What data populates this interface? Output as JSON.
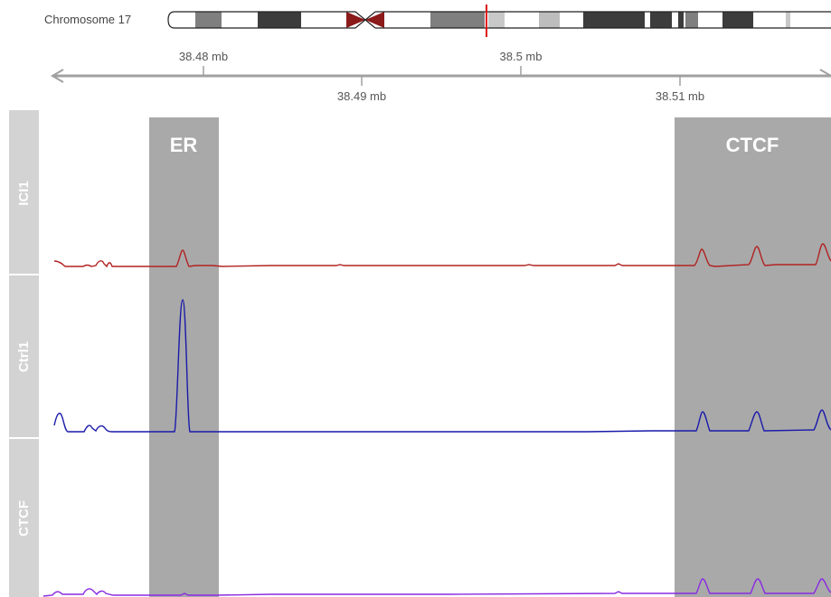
{
  "ideogram": {
    "label": "Chromosome 17"
  },
  "axis": {
    "tick_labels": [
      "38.48 mb",
      "38.49 mb",
      "38.5 mb",
      "38.51 mb"
    ]
  },
  "regions": [
    {
      "label": "ER"
    },
    {
      "label": "CTCF"
    }
  ],
  "tracks": [
    {
      "label": "ICI1",
      "color": "#b22222"
    },
    {
      "label": "Ctrl1",
      "color": "#1a1aaa"
    },
    {
      "label": "CTCF",
      "color": "#8a2be2"
    }
  ],
  "colors": {
    "track_header": "#d3d3d3",
    "region_shade": "#a9a9a9",
    "axis": "#a0a0a0",
    "centromere": "#8b1a1a",
    "position_marker": "#e01010"
  }
}
